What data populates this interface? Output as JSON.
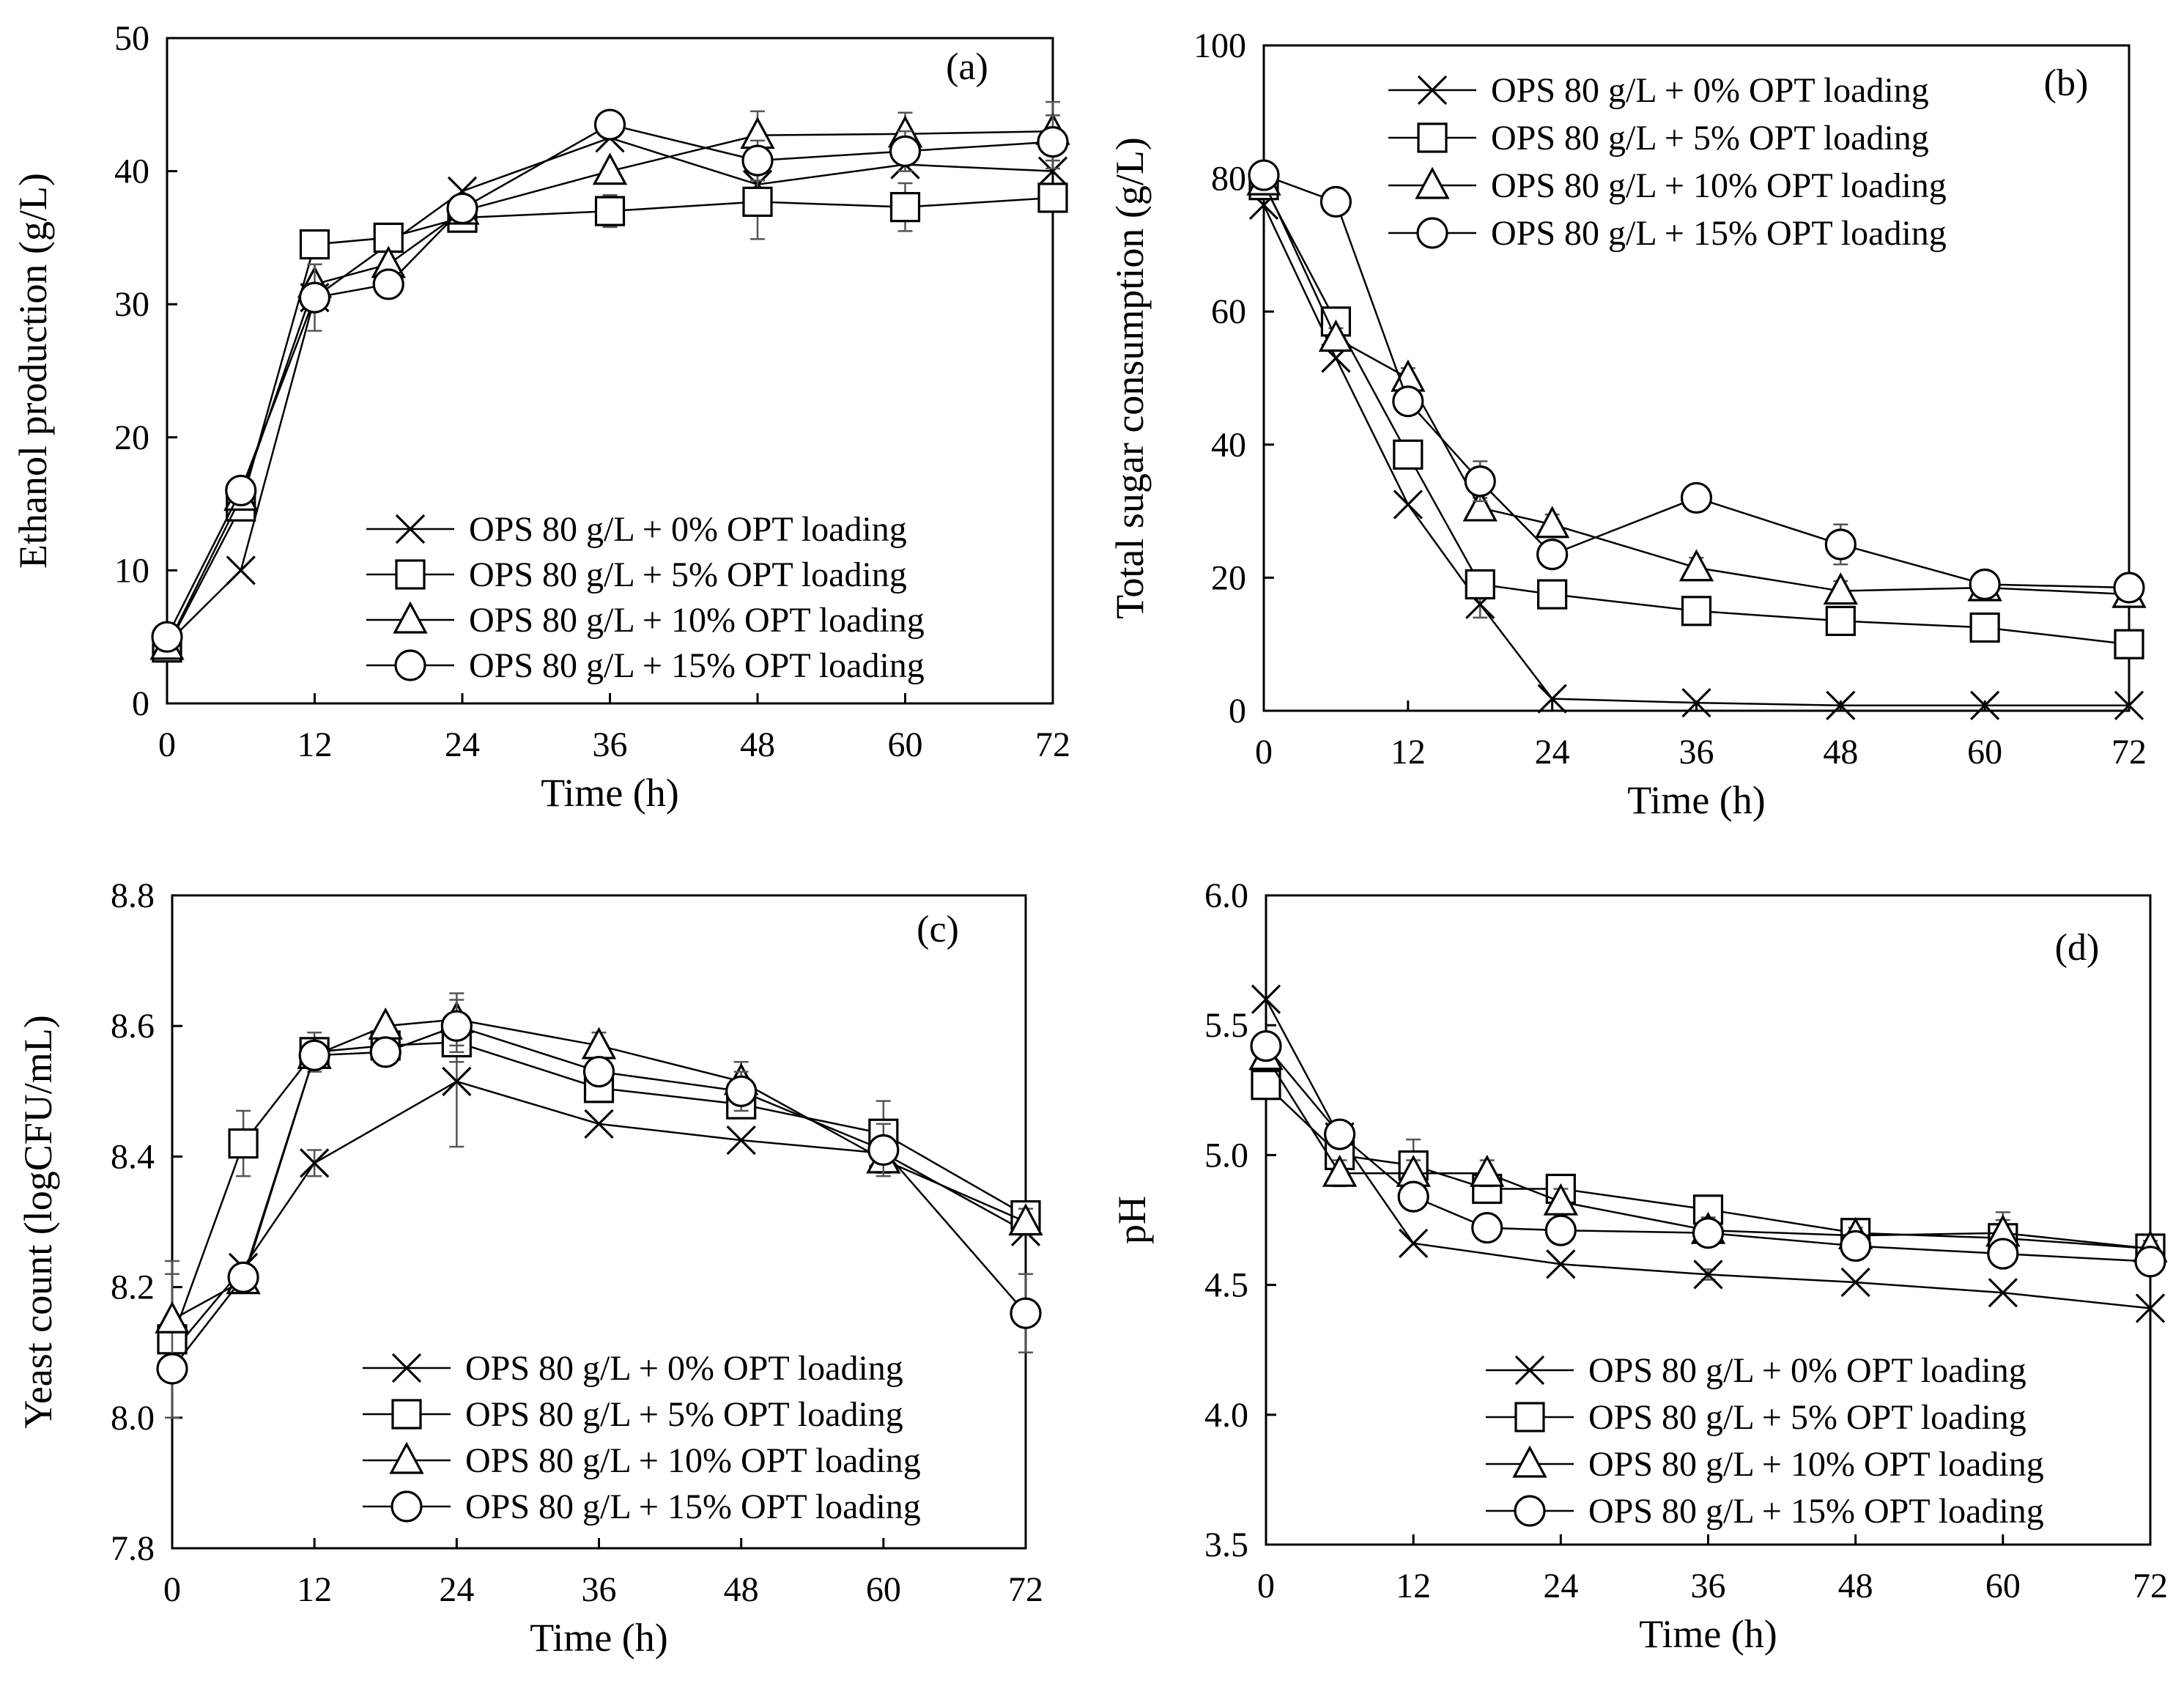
{
  "chart_data": [
    {
      "type": "line",
      "panel_label": "(a)",
      "xlabel": "Time (h)",
      "ylabel": "Ethanol production (g/L)",
      "xlim": [
        0,
        72
      ],
      "ylim": [
        0,
        50
      ],
      "xticks": [
        0,
        12,
        24,
        36,
        48,
        60,
        72
      ],
      "yticks": [
        0,
        10,
        20,
        30,
        40,
        50
      ],
      "tick_decimals": 0,
      "legend_position": "bottom-right",
      "series": [
        {
          "name": "OPS 80 g/L + 0% OPT loading",
          "marker": "x",
          "x": [
            0,
            6,
            12,
            24,
            36,
            48,
            60,
            72
          ],
          "y": [
            4.5,
            10,
            30.5,
            38.5,
            42.5,
            39,
            40.5,
            40
          ],
          "err": [
            0,
            0,
            0,
            0,
            0,
            0,
            0,
            0
          ]
        },
        {
          "name": "OPS 80 g/L + 5% OPT loading",
          "marker": "square",
          "x": [
            0,
            6,
            12,
            18,
            24,
            36,
            48,
            60,
            72
          ],
          "y": [
            4.2,
            14.8,
            34.5,
            35,
            36.5,
            37,
            37.7,
            37.3,
            38
          ],
          "err": [
            0,
            0.8,
            0,
            0,
            0,
            1.2,
            2.8,
            1.8,
            0
          ]
        },
        {
          "name": "OPS 80 g/L + 10% OPT loading",
          "marker": "triangle",
          "x": [
            0,
            6,
            12,
            18,
            24,
            36,
            48,
            60,
            72
          ],
          "y": [
            4.3,
            15.5,
            31.5,
            33,
            37,
            40,
            42.7,
            42.8,
            43
          ],
          "err": [
            0,
            0,
            1.5,
            0,
            0,
            0,
            1.8,
            1.6,
            2.2
          ]
        },
        {
          "name": "OPS 80 g/L + 15% OPT loading",
          "marker": "circle",
          "x": [
            0,
            6,
            12,
            18,
            24,
            36,
            48,
            60,
            72
          ],
          "y": [
            5,
            16,
            30.5,
            31.5,
            37.2,
            43.5,
            40.8,
            41.5,
            42.2
          ],
          "err": [
            0,
            0,
            2.5,
            0,
            0,
            0.8,
            1.5,
            1.5,
            2
          ]
        }
      ]
    },
    {
      "type": "line",
      "panel_label": "(b)",
      "xlabel": "Time (h)",
      "ylabel": "Total sugar consumption (g/L)",
      "xlim": [
        0,
        72
      ],
      "ylim": [
        0,
        100
      ],
      "xticks": [
        0,
        12,
        24,
        36,
        48,
        60,
        72
      ],
      "yticks": [
        0,
        20,
        40,
        60,
        80,
        100
      ],
      "tick_decimals": 0,
      "legend_position": "top-right",
      "series": [
        {
          "name": "OPS 80 g/L + 0% OPT loading",
          "marker": "x",
          "x": [
            0,
            6,
            12,
            18,
            24,
            36,
            48,
            60,
            72
          ],
          "y": [
            76,
            53,
            31,
            16,
            1.8,
            1.2,
            0.8,
            0.8,
            0.8
          ],
          "err": [
            0,
            0,
            0,
            2,
            0,
            0,
            0,
            0,
            0
          ]
        },
        {
          "name": "OPS 80 g/L + 5% OPT loading",
          "marker": "square",
          "x": [
            0,
            6,
            12,
            18,
            24,
            36,
            48,
            60,
            72
          ],
          "y": [
            79,
            58.5,
            38.5,
            19,
            17.5,
            15,
            13.5,
            12.5,
            10
          ],
          "err": [
            2,
            2,
            1.5,
            1.5,
            0,
            1.5,
            1.5,
            1,
            1
          ]
        },
        {
          "name": "OPS 80 g/L + 10% OPT loading",
          "marker": "triangle",
          "x": [
            0,
            6,
            12,
            18,
            24,
            36,
            48,
            60,
            72
          ],
          "y": [
            79.5,
            56,
            50,
            30.5,
            28,
            21.5,
            18,
            18.5,
            17.5
          ],
          "err": [
            1.5,
            1.5,
            1.5,
            1.5,
            1.5,
            1.5,
            1.5,
            1.5,
            1
          ]
        },
        {
          "name": "OPS 80 g/L + 15% OPT loading",
          "marker": "circle",
          "x": [
            0,
            6,
            12,
            18,
            24,
            36,
            48,
            60,
            72
          ],
          "y": [
            80.5,
            76.5,
            46.5,
            34.5,
            23.5,
            32,
            25,
            19,
            18.5
          ],
          "err": [
            2,
            0,
            1.5,
            3,
            0,
            0,
            3,
            1,
            1
          ]
        }
      ]
    },
    {
      "type": "line",
      "panel_label": "(c)",
      "xlabel": "Time (h)",
      "ylabel": "Yeast count (logCFU/mL)",
      "xlim": [
        0,
        72
      ],
      "ylim": [
        7.8,
        8.8
      ],
      "xticks": [
        0,
        12,
        24,
        36,
        48,
        60,
        72
      ],
      "yticks": [
        7.8,
        8.0,
        8.2,
        8.4,
        8.6,
        8.8
      ],
      "tick_decimals": 1,
      "legend_position": "bottom-right",
      "series": [
        {
          "name": "OPS 80 g/L + 0% OPT loading",
          "marker": "x",
          "x": [
            0,
            6,
            12,
            24,
            36,
            48,
            60,
            72
          ],
          "y": [
            8.1,
            8.23,
            8.39,
            8.515,
            8.45,
            8.425,
            8.405,
            8.285
          ],
          "err": [
            0,
            0,
            0.02,
            0.1,
            0,
            0,
            0,
            0
          ]
        },
        {
          "name": "OPS 80 g/L + 5% OPT loading",
          "marker": "square",
          "x": [
            0,
            6,
            12,
            18,
            24,
            36,
            48,
            60,
            72
          ],
          "y": [
            8.12,
            8.42,
            8.56,
            8.57,
            8.575,
            8.505,
            8.48,
            8.435,
            8.31
          ],
          "err": [
            0.12,
            0.05,
            0.03,
            0,
            0.03,
            0.02,
            0.02,
            0.05,
            0.02
          ]
        },
        {
          "name": "OPS 80 g/L + 10% OPT loading",
          "marker": "triangle",
          "x": [
            0,
            6,
            12,
            18,
            24,
            36,
            48,
            60,
            72
          ],
          "y": [
            8.15,
            8.21,
            8.555,
            8.6,
            8.61,
            8.57,
            8.515,
            8.395,
            8.3
          ],
          "err": [
            0.07,
            0,
            0.02,
            0,
            0.04,
            0.02,
            0.03,
            0.02,
            0.02
          ]
        },
        {
          "name": "OPS 80 g/L + 15% OPT loading",
          "marker": "circle",
          "x": [
            0,
            6,
            12,
            18,
            24,
            36,
            48,
            60,
            72
          ],
          "y": [
            8.075,
            8.215,
            8.555,
            8.56,
            8.6,
            8.53,
            8.5,
            8.41,
            8.16
          ],
          "err": [
            0,
            0,
            0.02,
            0,
            0.04,
            0.02,
            0.03,
            0.04,
            0.06
          ]
        }
      ]
    },
    {
      "type": "line",
      "panel_label": "(d)",
      "xlabel": "Time (h)",
      "ylabel": "pH",
      "xlim": [
        0,
        72
      ],
      "ylim": [
        3.5,
        6.0
      ],
      "xticks": [
        0,
        12,
        24,
        36,
        48,
        60,
        72
      ],
      "yticks": [
        3.5,
        4.0,
        4.5,
        5.0,
        5.5,
        6.0
      ],
      "tick_decimals": 1,
      "legend_position": "bottom-right",
      "series": [
        {
          "name": "OPS 80 g/L + 0% OPT loading",
          "marker": "x",
          "x": [
            0,
            6,
            12,
            24,
            36,
            48,
            60,
            72
          ],
          "y": [
            5.6,
            5.07,
            4.66,
            4.58,
            4.54,
            4.51,
            4.47,
            4.41
          ],
          "err": [
            0,
            0,
            0,
            0,
            0.02,
            0,
            0,
            0
          ]
        },
        {
          "name": "OPS 80 g/L + 5% OPT loading",
          "marker": "square",
          "x": [
            0,
            6,
            12,
            18,
            24,
            36,
            48,
            60,
            72
          ],
          "y": [
            5.27,
            5.0,
            4.96,
            4.87,
            4.87,
            4.79,
            4.7,
            4.68,
            4.64
          ],
          "err": [
            0,
            0.05,
            0.1,
            0.05,
            0.05,
            0.05,
            0.05,
            0.1,
            0.05
          ]
        },
        {
          "name": "OPS 80 g/L + 10% OPT loading",
          "marker": "triangle",
          "x": [
            0,
            6,
            12,
            18,
            24,
            36,
            48,
            60,
            72
          ],
          "y": [
            5.38,
            4.93,
            4.93,
            4.93,
            4.82,
            4.71,
            4.69,
            4.7,
            4.64
          ],
          "err": [
            0,
            0.05,
            0.05,
            0.05,
            0.05,
            0.05,
            0.03,
            0.05,
            0.03
          ]
        },
        {
          "name": "OPS 80 g/L + 15% OPT loading",
          "marker": "circle",
          "x": [
            0,
            6,
            12,
            18,
            24,
            36,
            48,
            60,
            72
          ],
          "y": [
            5.42,
            5.08,
            4.84,
            4.72,
            4.71,
            4.7,
            4.65,
            4.62,
            4.59
          ],
          "err": [
            0,
            0.05,
            0.05,
            0,
            0.05,
            0.05,
            0.03,
            0.05,
            0.03
          ]
        }
      ]
    }
  ]
}
